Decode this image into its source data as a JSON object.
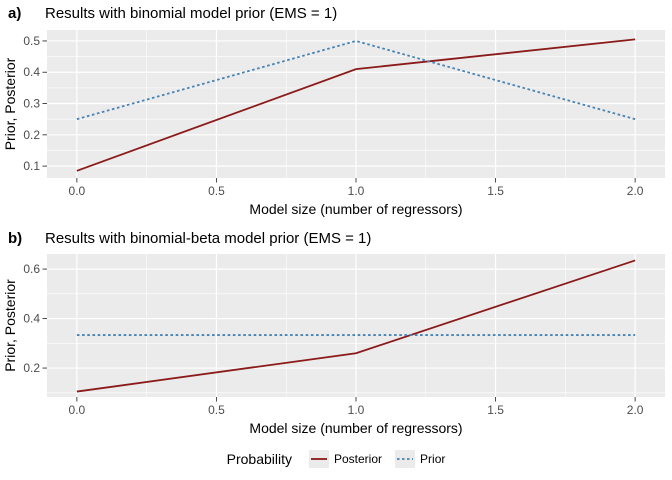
{
  "chart_data": [
    {
      "type": "line",
      "tag": "a)",
      "title": "Results with binomial model prior (EMS = 1)",
      "xlabel": "Model size (number of regressors)",
      "ylabel": "Prior, Posterior",
      "x": [
        0,
        1,
        2
      ],
      "series": [
        {
          "name": "Posterior",
          "values": [
            0.085,
            0.41,
            0.505
          ],
          "color": "#8B1A1A",
          "style": "solid"
        },
        {
          "name": "Prior",
          "values": [
            0.25,
            0.5,
            0.25
          ],
          "color": "#4682B4",
          "style": "dashed"
        }
      ],
      "xlim": [
        -0.107,
        2.107
      ],
      "ylim": [
        0.062,
        0.535
      ],
      "xticks": [
        0,
        0.5,
        1,
        1.5,
        2
      ],
      "xtick_labels": [
        "0.0",
        "0.5",
        "1.0",
        "1.5",
        "2.0"
      ],
      "yticks": [
        0.1,
        0.2,
        0.3,
        0.4,
        0.5
      ],
      "ytick_labels": [
        "0.1",
        "0.2",
        "0.3",
        "0.4",
        "0.5"
      ],
      "x_minor": [
        0.25,
        0.75,
        1.25,
        1.75
      ],
      "y_minor": [
        0.15,
        0.25,
        0.35,
        0.45
      ],
      "grid": true,
      "panel_bg": "#EBEBEB",
      "grid_color": "#FFFFFF",
      "tick_text_color": "#4D4D4D",
      "tick_mark_color": "#333333"
    },
    {
      "type": "line",
      "tag": "b)",
      "title": "Results with binomial-beta model prior (EMS = 1)",
      "xlabel": "Model size (number of regressors)",
      "ylabel": "Prior, Posterior",
      "x": [
        0,
        1,
        2
      ],
      "series": [
        {
          "name": "Posterior",
          "values": [
            0.105,
            0.26,
            0.635
          ],
          "color": "#8B1A1A",
          "style": "solid"
        },
        {
          "name": "Prior",
          "values": [
            0.3333,
            0.3333,
            0.3333
          ],
          "color": "#4682B4",
          "style": "dashed"
        }
      ],
      "xlim": [
        -0.107,
        2.107
      ],
      "ylim": [
        0.083,
        0.661
      ],
      "xticks": [
        0,
        0.5,
        1,
        1.5,
        2
      ],
      "xtick_labels": [
        "0.0",
        "0.5",
        "1.0",
        "1.5",
        "2.0"
      ],
      "yticks": [
        0.2,
        0.4,
        0.6
      ],
      "ytick_labels": [
        "0.2",
        "0.4",
        "0.6"
      ],
      "x_minor": [
        0.25,
        0.75,
        1.25,
        1.75
      ],
      "y_minor": [
        0.1,
        0.3,
        0.5
      ],
      "grid": true,
      "panel_bg": "#EBEBEB",
      "grid_color": "#FFFFFF",
      "tick_text_color": "#4D4D4D",
      "tick_mark_color": "#333333"
    }
  ],
  "legend": {
    "title": "Probability",
    "entries": [
      {
        "label": "Posterior",
        "color": "#8B1A1A",
        "style": "solid"
      },
      {
        "label": "Prior",
        "color": "#4682B4",
        "style": "dashed"
      }
    ],
    "key_bg": "#EBEBEB"
  }
}
